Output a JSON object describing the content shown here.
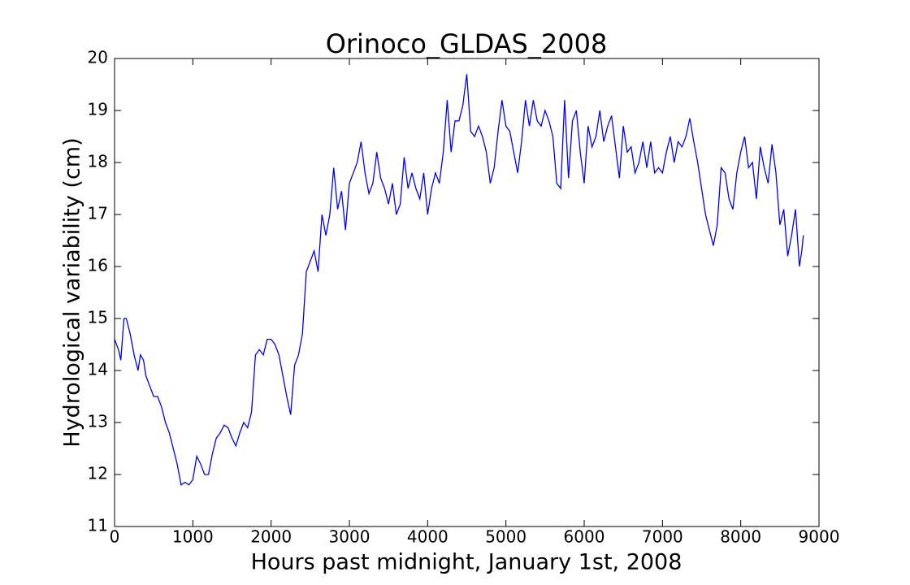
{
  "chart_data": {
    "type": "line",
    "title": "Orinoco_GLDAS_2008",
    "x_label": "Hours past midnight, January 1st, 2008",
    "y_label": "Hydrological variability (cm)",
    "xlim": [
      0,
      9000
    ],
    "xticks": [
      0,
      1000,
      2000,
      3000,
      4000,
      5000,
      6000,
      7000,
      8000,
      9000
    ],
    "ylim": [
      11,
      20
    ],
    "yticks": [
      11,
      12,
      13,
      14,
      15,
      16,
      17,
      18,
      19,
      20
    ],
    "grid": false,
    "series": [
      {
        "color": "#0000ff",
        "x": [
          0,
          50,
          80,
          120,
          150,
          200,
          250,
          300,
          330,
          370,
          400,
          450,
          500,
          550,
          600,
          650,
          700,
          750,
          800,
          850,
          900,
          950,
          1000,
          1050,
          1100,
          1150,
          1200,
          1250,
          1300,
          1350,
          1400,
          1450,
          1500,
          1550,
          1600,
          1650,
          1700,
          1750,
          1800,
          1850,
          1900,
          1950,
          2000,
          2050,
          2100,
          2150,
          2200,
          2250,
          2300,
          2350,
          2400,
          2450,
          2500,
          2550,
          2600,
          2650,
          2700,
          2750,
          2800,
          2850,
          2900,
          2950,
          3000,
          3050,
          3100,
          3150,
          3200,
          3250,
          3300,
          3350,
          3400,
          3450,
          3500,
          3550,
          3600,
          3650,
          3700,
          3750,
          3800,
          3850,
          3900,
          3950,
          4000,
          4050,
          4100,
          4150,
          4200,
          4250,
          4300,
          4350,
          4400,
          4450,
          4500,
          4550,
          4600,
          4650,
          4700,
          4750,
          4800,
          4850,
          4900,
          4950,
          5000,
          5050,
          5100,
          5150,
          5200,
          5250,
          5300,
          5350,
          5400,
          5450,
          5500,
          5550,
          5600,
          5650,
          5700,
          5750,
          5800,
          5850,
          5900,
          5950,
          6000,
          6050,
          6100,
          6150,
          6200,
          6250,
          6300,
          6350,
          6400,
          6450,
          6500,
          6550,
          6600,
          6650,
          6700,
          6750,
          6800,
          6850,
          6900,
          6950,
          7000,
          7050,
          7100,
          7150,
          7200,
          7250,
          7300,
          7350,
          7400,
          7450,
          7500,
          7550,
          7600,
          7650,
          7700,
          7750,
          7800,
          7850,
          7900,
          7950,
          8000,
          8050,
          8100,
          8150,
          8200,
          8250,
          8300,
          8350,
          8400,
          8450,
          8500,
          8550,
          8600,
          8650,
          8700,
          8750,
          8780,
          8800
        ],
        "values": [
          14.6,
          14.4,
          14.2,
          15.0,
          15.0,
          14.7,
          14.3,
          14.0,
          14.3,
          14.2,
          13.9,
          13.7,
          13.5,
          13.5,
          13.3,
          13.0,
          12.8,
          12.5,
          12.2,
          11.8,
          11.85,
          11.8,
          11.9,
          12.35,
          12.2,
          12.0,
          12.0,
          12.4,
          12.7,
          12.8,
          12.95,
          12.9,
          12.7,
          12.55,
          12.8,
          13.0,
          12.9,
          13.2,
          14.3,
          14.4,
          14.3,
          14.6,
          14.6,
          14.5,
          14.3,
          13.9,
          13.5,
          13.15,
          14.1,
          14.3,
          14.7,
          15.9,
          16.1,
          16.3,
          15.9,
          17.0,
          16.6,
          17.0,
          17.9,
          17.1,
          17.45,
          16.7,
          17.6,
          17.8,
          18.0,
          18.4,
          17.8,
          17.4,
          17.6,
          18.2,
          17.7,
          17.5,
          17.2,
          17.6,
          17.0,
          17.2,
          18.1,
          17.5,
          17.8,
          17.5,
          17.3,
          17.8,
          17.0,
          17.5,
          17.8,
          17.6,
          18.2,
          19.2,
          18.2,
          18.8,
          18.8,
          19.1,
          19.7,
          18.6,
          18.5,
          18.7,
          18.5,
          18.2,
          17.6,
          17.9,
          18.6,
          19.2,
          18.7,
          18.6,
          18.2,
          17.8,
          18.4,
          19.2,
          18.7,
          19.2,
          18.8,
          18.7,
          19.0,
          18.8,
          18.5,
          17.6,
          17.5,
          19.2,
          17.7,
          18.8,
          19.0,
          18.2,
          17.6,
          18.7,
          18.3,
          18.5,
          19.0,
          18.4,
          18.7,
          18.9,
          18.3,
          17.7,
          18.7,
          18.2,
          18.3,
          17.8,
          18.0,
          18.4,
          17.9,
          18.4,
          17.8,
          17.9,
          17.8,
          18.2,
          18.5,
          18.0,
          18.4,
          18.3,
          18.5,
          18.85,
          18.4,
          18.0,
          17.5,
          17.0,
          16.7,
          16.4,
          16.8,
          17.9,
          17.8,
          17.3,
          17.1,
          17.8,
          18.2,
          18.5,
          17.9,
          18.0,
          17.3,
          18.3,
          17.9,
          17.6,
          18.35,
          17.8,
          16.8,
          17.1,
          16.2,
          16.6,
          17.1,
          16.0,
          16.3,
          16.6
        ]
      }
    ]
  }
}
